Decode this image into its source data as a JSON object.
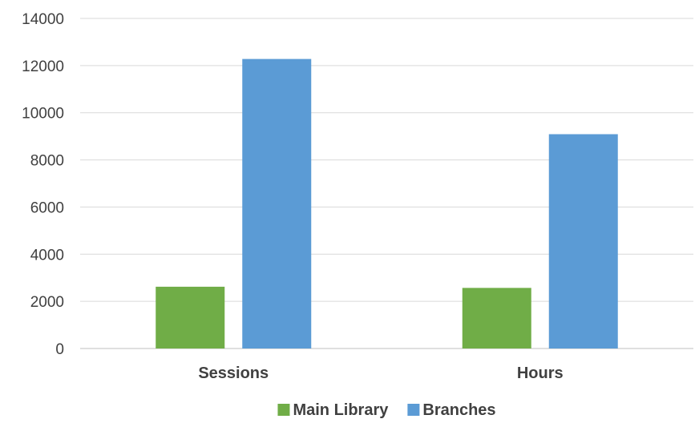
{
  "chart_data": {
    "type": "bar",
    "categories": [
      "Sessions",
      "Hours"
    ],
    "series": [
      {
        "name": "Main Library",
        "values": [
          2620,
          2570
        ],
        "color": "#70ad47"
      },
      {
        "name": "Branches",
        "values": [
          12280,
          9090
        ],
        "color": "#5b9bd5"
      }
    ],
    "ylim": [
      0,
      14000
    ],
    "yticks": [
      0,
      2000,
      4000,
      6000,
      8000,
      10000,
      12000,
      14000
    ],
    "grid": true,
    "legend": "bottom"
  }
}
